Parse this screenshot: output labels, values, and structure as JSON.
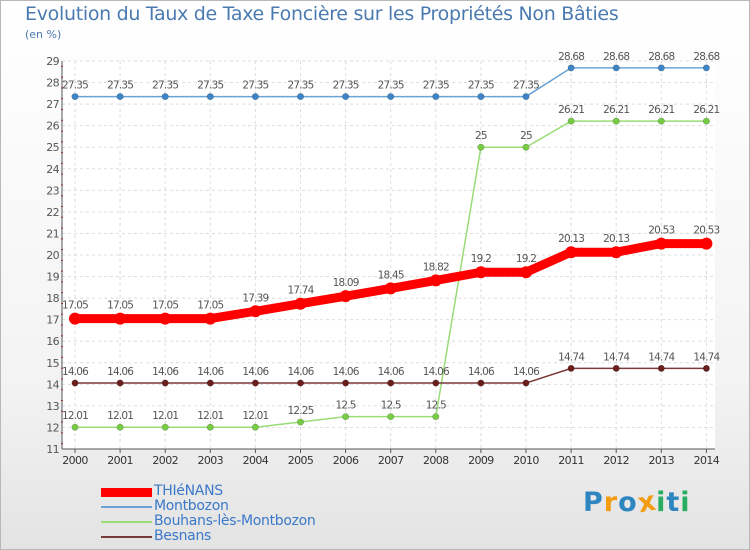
{
  "chart_data": {
    "type": "line",
    "title": "Evolution du Taux de Taxe Foncière sur les Propriétés Non Bâties",
    "subtitle": "(en %)",
    "xlabel": "",
    "ylabel": "",
    "x": [
      "2000",
      "2001",
      "2002",
      "2003",
      "2004",
      "2005",
      "2006",
      "2007",
      "2008",
      "2009",
      "2010",
      "2011",
      "2012",
      "2013",
      "2014"
    ],
    "ylim": [
      11,
      29
    ],
    "yticks": [
      11,
      12,
      13,
      14,
      15,
      16,
      17,
      18,
      19,
      20,
      21,
      22,
      23,
      24,
      25,
      26,
      27,
      28,
      29
    ],
    "grid": true,
    "legend_position": "bottom-left",
    "series": [
      {
        "name": "THIéNANS",
        "color": "#ff0000",
        "marker_color": "#ff0000",
        "values": [
          17.05,
          17.05,
          17.05,
          17.05,
          17.39,
          17.74,
          18.09,
          18.45,
          18.82,
          19.2,
          19.2,
          20.13,
          20.13,
          20.53,
          20.53
        ],
        "labels": [
          "17.05",
          "17.05",
          "17.05",
          "17.05",
          "17.39",
          "17.74",
          "18.09",
          "18.45",
          "18.82",
          "19.2",
          "19.2",
          "20.13",
          "20.13",
          "20.53",
          "20.53"
        ]
      },
      {
        "name": "Montbozon",
        "color": "#6ba3d6",
        "marker_color": "#3d85c6",
        "values": [
          27.35,
          27.35,
          27.35,
          27.35,
          27.35,
          27.35,
          27.35,
          27.35,
          27.35,
          27.35,
          27.35,
          28.68,
          28.68,
          28.68,
          28.68
        ],
        "labels": [
          "27.35",
          "27.35",
          "27.35",
          "27.35",
          "27.35",
          "27.35",
          "27.35",
          "27.35",
          "27.35",
          "27.35",
          "27.35",
          "28.68",
          "28.68",
          "28.68",
          "28.68"
        ]
      },
      {
        "name": "Bouhans-lès-Montbozon",
        "color": "#99dd77",
        "marker_color": "#77cc44",
        "values": [
          12.01,
          12.01,
          12.01,
          12.01,
          12.01,
          12.25,
          12.5,
          12.5,
          12.5,
          25,
          25,
          26.21,
          26.21,
          26.21,
          26.21
        ],
        "labels": [
          "12.01",
          "12.01",
          "12.01",
          "12.01",
          "12.01",
          "12.25",
          "12.5",
          "12.5",
          "12.5",
          "25",
          "25",
          "26.21",
          "26.21",
          "26.21",
          "26.21"
        ]
      },
      {
        "name": "Besnans",
        "color": "#7a3a3a",
        "marker_color": "#6b1e1e",
        "values": [
          14.06,
          14.06,
          14.06,
          14.06,
          14.06,
          14.06,
          14.06,
          14.06,
          14.06,
          14.06,
          14.06,
          14.74,
          14.74,
          14.74,
          14.74
        ],
        "labels": [
          "14.06",
          "14.06",
          "14.06",
          "14.06",
          "14.06",
          "14.06",
          "14.06",
          "14.06",
          "14.06",
          "14.06",
          "14.06",
          "14.74",
          "14.74",
          "14.74",
          "14.74"
        ]
      }
    ]
  },
  "logo": {
    "letters": [
      "P",
      "r",
      "o",
      "x",
      "i",
      "t",
      "i"
    ],
    "colors": [
      "#2e86c1",
      "#f39c12",
      "#2e86c1",
      "#f39c12",
      "#27ae60",
      "#2e86c1",
      "#27ae60"
    ]
  }
}
